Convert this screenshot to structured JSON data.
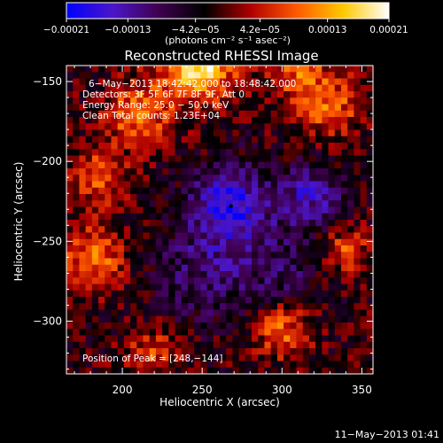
{
  "chart_data": {
    "type": "heatmap",
    "title": "Reconstructed RHESSI Image",
    "xlabel": "Heliocentric X (arcsec)",
    "ylabel": "Heliocentric Y (arcsec)",
    "xlim": [
      165,
      357
    ],
    "ylim": [
      -333,
      -140
    ],
    "x_ticks": [
      200,
      250,
      300,
      350
    ],
    "x_tick_labels": [
      "200",
      "250",
      "300",
      "350"
    ],
    "y_ticks": [
      -150,
      -200,
      -250,
      -300
    ],
    "y_tick_labels": [
      "−150",
      "−200",
      "−250",
      "−300"
    ],
    "colorbar": {
      "range": [
        -0.00021,
        0.00021
      ],
      "ticks": [
        -0.00021,
        -0.00013,
        -4.2e-05,
        4.2e-05,
        0.00013,
        0.00021
      ],
      "tick_labels": [
        "−0.00021",
        "−0.00013",
        "−4.2e−05",
        "4.2e−05",
        "0.00013",
        "0.00021"
      ],
      "unit_label": "(photons cm⁻² s⁻¹ asec⁻²)",
      "colors": [
        "#0000ff",
        "#4b16c8",
        "#400050",
        "#000000",
        "#b00000",
        "#ff5a00",
        "#ffc800",
        "#ffffff"
      ]
    },
    "annotations": [
      "6−May−2013 18:42:42.000 to 18:48:42.000",
      "Detectors: 3F 5F 6F 7F 8F 9F, Att 0",
      "Energy Range: 25.0 − 50.0 keV",
      "Clean    Total counts: 1.23E+04",
      "Position of Peak = [248,−144]"
    ],
    "peak": {
      "x": 248,
      "y": -144
    },
    "marker": {
      "x": 268,
      "y": -228
    },
    "grid_cols": 48,
    "grid_rows": 48,
    "blobs": [
      {
        "x": 248,
        "y": -138,
        "amp": 1.0,
        "sigma": 16
      },
      {
        "x": 210,
        "y": -170,
        "amp": 0.6,
        "sigma": 14
      },
      {
        "x": 185,
        "y": -210,
        "amp": 0.5,
        "sigma": 12
      },
      {
        "x": 182,
        "y": -260,
        "amp": 0.55,
        "sigma": 14
      },
      {
        "x": 220,
        "y": -320,
        "amp": 0.4,
        "sigma": 12
      },
      {
        "x": 300,
        "y": -305,
        "amp": 0.55,
        "sigma": 12
      },
      {
        "x": 340,
        "y": -255,
        "amp": 0.45,
        "sigma": 10
      },
      {
        "x": 330,
        "y": -165,
        "amp": 0.5,
        "sigma": 14
      },
      {
        "x": 310,
        "y": -145,
        "amp": 0.45,
        "sigma": 12
      },
      {
        "x": 268,
        "y": -228,
        "amp": -0.75,
        "sigma": 18
      },
      {
        "x": 318,
        "y": -222,
        "amp": -0.55,
        "sigma": 14
      },
      {
        "x": 250,
        "y": -270,
        "amp": -0.35,
        "sigma": 22
      },
      {
        "x": 300,
        "y": -270,
        "amp": -0.3,
        "sigma": 18
      }
    ]
  },
  "footer": {
    "timestamp": "11−May−2013 01:41"
  }
}
